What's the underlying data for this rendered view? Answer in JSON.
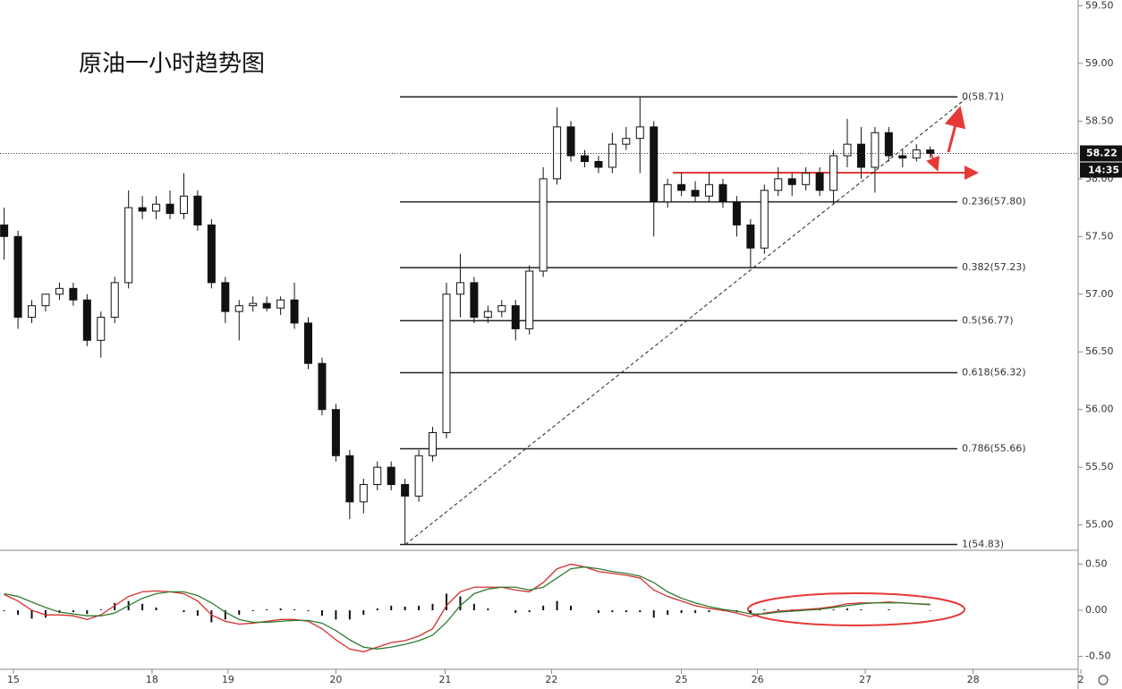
{
  "chart_data": [
    {
      "type": "candlestick",
      "title": "原油一小时趋势图",
      "xlim": [
        -0.3,
        77.7
      ],
      "xticks": [
        {
          "value": 0.67,
          "label": "15"
        },
        {
          "value": 10.7,
          "label": "18"
        },
        {
          "value": 16.2,
          "label": "19"
        },
        {
          "value": 24.0,
          "label": "20"
        },
        {
          "value": 31.9,
          "label": "21"
        },
        {
          "value": 39.6,
          "label": "22"
        },
        {
          "value": 49.0,
          "label": "25"
        },
        {
          "value": 54.5,
          "label": "26"
        },
        {
          "value": 62.3,
          "label": "27"
        },
        {
          "value": 70.1,
          "label": "28"
        },
        {
          "value": 77.9,
          "label": "2"
        }
      ],
      "ylim": [
        54.78,
        59.55
      ],
      "yticks": [
        {
          "value": 55,
          "label": "55.00"
        },
        {
          "value": 55.5,
          "label": "55.50"
        },
        {
          "value": 56,
          "label": "56.00"
        },
        {
          "value": 56.5,
          "label": "56.50"
        },
        {
          "value": 57,
          "label": "57.00"
        },
        {
          "value": 57.5,
          "label": "57.50"
        },
        {
          "value": 58,
          "label": "58.00"
        },
        {
          "value": 58.5,
          "label": "58.50"
        },
        {
          "value": 59,
          "label": "59.00"
        },
        {
          "value": 59.5,
          "label": "59.50"
        }
      ],
      "open": [
        57.6,
        57.5,
        56.8,
        56.9,
        57.0,
        57.05,
        56.95,
        56.6,
        56.8,
        57.1,
        57.75,
        57.72,
        57.78,
        57.7,
        57.85,
        57.6,
        57.1,
        56.85,
        56.9,
        56.92,
        56.88,
        56.95,
        56.75,
        56.4,
        56.0,
        55.6,
        55.2,
        55.35,
        55.5,
        55.35,
        55.25,
        55.6,
        55.8,
        57.0,
        57.1,
        56.8,
        56.85,
        56.9,
        56.7,
        57.2,
        58.0,
        58.45,
        58.2,
        58.15,
        58.1,
        58.3,
        58.35,
        58.45,
        57.8,
        57.95,
        57.9,
        57.85,
        57.95,
        57.8,
        57.6,
        57.4,
        57.9,
        58.0,
        57.95,
        58.05,
        57.9,
        58.2,
        58.3,
        58.1,
        58.4,
        58.2,
        58.18,
        58.25
      ],
      "high": [
        57.75,
        57.55,
        56.95,
        57.0,
        57.1,
        57.1,
        57.0,
        56.85,
        57.15,
        57.9,
        57.85,
        57.85,
        57.9,
        58.05,
        57.9,
        57.65,
        57.15,
        56.95,
        56.98,
        56.98,
        56.98,
        57.1,
        56.8,
        56.45,
        56.05,
        55.65,
        55.4,
        55.55,
        55.55,
        55.4,
        55.65,
        55.85,
        57.1,
        57.35,
        57.15,
        56.9,
        56.95,
        56.95,
        57.25,
        58.1,
        58.62,
        58.5,
        58.25,
        58.2,
        58.4,
        58.45,
        58.71,
        58.5,
        58.0,
        58.05,
        57.98,
        58.05,
        58.0,
        57.85,
        57.65,
        57.95,
        58.1,
        58.05,
        58.1,
        58.1,
        58.25,
        58.52,
        58.45,
        58.45,
        58.45,
        58.25,
        58.3,
        58.28
      ],
      "low": [
        57.3,
        56.7,
        56.75,
        56.85,
        56.95,
        56.9,
        56.55,
        56.45,
        56.75,
        57.05,
        57.65,
        57.65,
        57.65,
        57.65,
        57.55,
        57.05,
        56.75,
        56.6,
        56.85,
        56.85,
        56.82,
        56.7,
        56.35,
        55.95,
        55.55,
        55.05,
        55.1,
        55.3,
        55.3,
        54.83,
        55.2,
        55.55,
        55.75,
        56.8,
        56.75,
        56.75,
        56.8,
        56.6,
        56.65,
        57.15,
        57.95,
        58.15,
        58.1,
        58.05,
        58.05,
        58.25,
        58.05,
        57.5,
        57.75,
        57.85,
        57.8,
        57.8,
        57.75,
        57.5,
        57.23,
        57.35,
        57.85,
        57.85,
        57.9,
        57.85,
        57.78,
        58.1,
        58.0,
        57.88,
        58.15,
        58.1,
        58.15,
        58.18
      ],
      "close": [
        57.5,
        56.8,
        56.9,
        57.0,
        57.05,
        56.95,
        56.6,
        56.8,
        57.1,
        57.75,
        57.72,
        57.78,
        57.7,
        57.85,
        57.6,
        57.1,
        56.85,
        56.9,
        56.92,
        56.88,
        56.95,
        56.75,
        56.4,
        56.0,
        55.6,
        55.2,
        55.35,
        55.5,
        55.35,
        55.25,
        55.6,
        55.8,
        57.0,
        57.1,
        56.8,
        56.85,
        56.9,
        56.7,
        57.2,
        58.0,
        58.45,
        58.2,
        58.15,
        58.1,
        58.3,
        58.35,
        58.45,
        57.8,
        57.95,
        57.9,
        57.85,
        57.95,
        57.8,
        57.6,
        57.4,
        57.9,
        58.0,
        57.95,
        58.05,
        57.9,
        58.2,
        58.3,
        58.1,
        58.4,
        58.2,
        58.18,
        58.25,
        58.22
      ],
      "fib_levels": [
        {
          "value": 58.71,
          "label": "0(58.71)"
        },
        {
          "value": 57.8,
          "label": "0.236(57.80)"
        },
        {
          "value": 57.23,
          "label": "0.382(57.23)"
        },
        {
          "value": 56.77,
          "label": "0.5(56.77)"
        },
        {
          "value": 56.32,
          "label": "0.618(56.32)"
        },
        {
          "value": 55.66,
          "label": "0.786(55.66)"
        },
        {
          "value": 54.83,
          "label": "1(54.83)"
        }
      ],
      "last_price": {
        "value": 58.22,
        "label": "58.22"
      },
      "time_label": "14:35"
    },
    {
      "type": "macd",
      "ylim": [
        -0.64,
        0.65
      ],
      "yticks": [
        {
          "value": 0.5,
          "label": "0.50"
        },
        {
          "value": 0,
          "label": "0.00"
        },
        {
          "value": -0.5,
          "label": "-0.50"
        }
      ],
      "series": [
        {
          "color": "#d32f2f",
          "values": [
            0.17,
            0.1,
            0,
            -0.05,
            -0.05,
            -0.06,
            -0.1,
            -0.05,
            0.05,
            0.15,
            0.2,
            0.21,
            0.2,
            0.18,
            0.1,
            -0.05,
            -0.12,
            -0.15,
            -0.14,
            -0.12,
            -0.1,
            -0.1,
            -0.12,
            -0.2,
            -0.32,
            -0.42,
            -0.45,
            -0.4,
            -0.35,
            -0.33,
            -0.28,
            -0.2,
            0.05,
            0.2,
            0.25,
            0.25,
            0.25,
            0.22,
            0.2,
            0.3,
            0.45,
            0.5,
            0.47,
            0.42,
            0.4,
            0.38,
            0.35,
            0.22,
            0.15,
            0.1,
            0.05,
            0.02,
            0,
            -0.03,
            -0.07,
            -0.03,
            -0.01,
            0,
            0.01,
            0.02,
            0.04,
            0.07,
            0.08,
            0.08,
            0.09,
            0.08,
            0.07,
            0.06
          ]
        },
        {
          "color": "#2e7d32",
          "values": [
            0.18,
            0.15,
            0.09,
            0.03,
            -0.02,
            -0.04,
            -0.06,
            -0.06,
            -0.03,
            0.05,
            0.13,
            0.18,
            0.2,
            0.2,
            0.16,
            0.08,
            -0.02,
            -0.1,
            -0.13,
            -0.13,
            -0.12,
            -0.11,
            -0.11,
            -0.14,
            -0.22,
            -0.32,
            -0.4,
            -0.42,
            -0.4,
            -0.37,
            -0.33,
            -0.27,
            -0.13,
            0.05,
            0.18,
            0.23,
            0.25,
            0.25,
            0.22,
            0.25,
            0.35,
            0.45,
            0.47,
            0.45,
            0.42,
            0.4,
            0.37,
            0.3,
            0.2,
            0.13,
            0.08,
            0.04,
            0.01,
            -0.01,
            -0.04,
            -0.04,
            -0.02,
            -0.01,
            0,
            0.01,
            0.03,
            0.05,
            0.07,
            0.08,
            0.08,
            0.08,
            0.07,
            0.065
          ]
        }
      ],
      "histogram": [
        -0.01,
        -0.05,
        -0.09,
        -0.08,
        -0.03,
        -0.02,
        -0.04,
        0.01,
        0.08,
        0.1,
        0.07,
        0.03,
        0,
        -0.02,
        -0.06,
        -0.13,
        -0.1,
        -0.05,
        -0.01,
        0.01,
        0.02,
        0.01,
        -0.01,
        -0.06,
        -0.1,
        -0.1,
        -0.05,
        0.02,
        0.05,
        0.04,
        0.05,
        0.07,
        0.18,
        0.15,
        0.07,
        0.02,
        0,
        -0.03,
        -0.02,
        0.05,
        0.1,
        0.05,
        0,
        -0.03,
        -0.02,
        -0.02,
        -0.02,
        -0.08,
        -0.05,
        -0.03,
        -0.03,
        -0.02,
        -0.01,
        -0.02,
        -0.03,
        0.01,
        0.01,
        0.01,
        0.01,
        0.01,
        0.01,
        0.02,
        0.01,
        0,
        0.01,
        0,
        0,
        -0.005
      ]
    }
  ]
}
